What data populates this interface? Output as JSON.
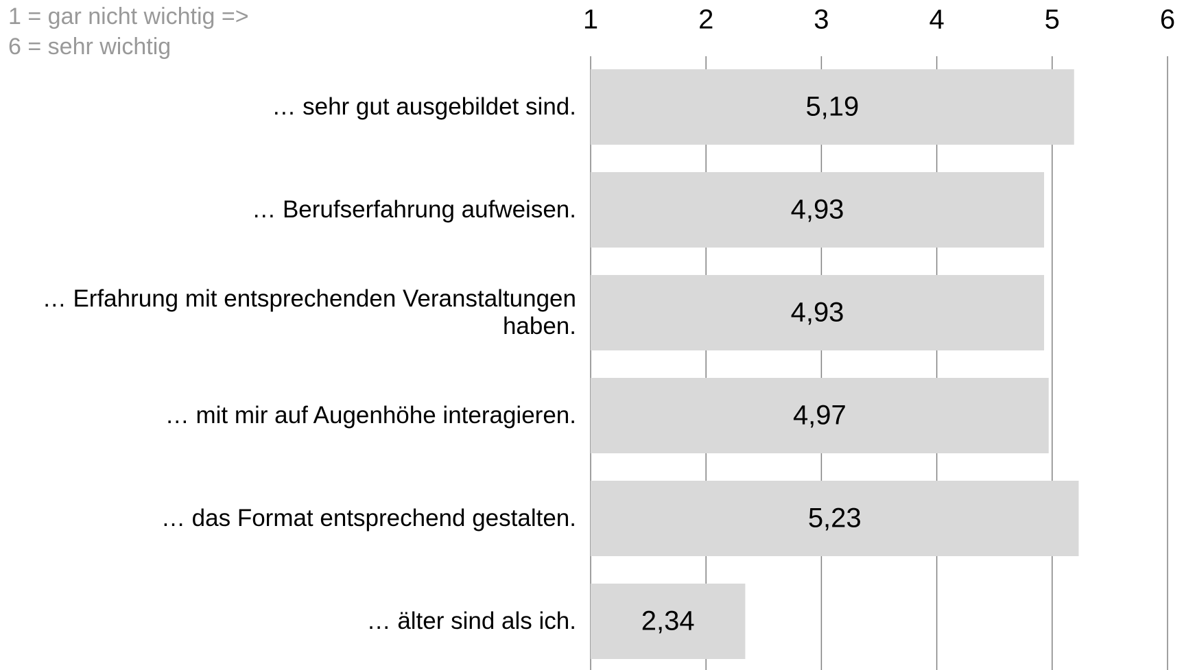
{
  "chart_data": {
    "type": "bar",
    "orientation": "horizontal",
    "annotation": [
      "1 = gar nicht wichtig =>",
      "6 = sehr wichtig"
    ],
    "categories": [
      "… sehr gut ausgebildet sind.",
      "… Berufserfahrung aufweisen.",
      "… Erfahrung mit entsprechenden Veranstaltungen haben.",
      "… mit mir auf Augenhöhe interagieren.",
      "… das Format entsprechend gestalten.",
      "… älter sind als ich."
    ],
    "values": [
      5.19,
      4.93,
      4.93,
      4.97,
      5.23,
      2.34
    ],
    "value_labels": [
      "5,19",
      "4,93",
      "4,93",
      "4,97",
      "5,23",
      "2,34"
    ],
    "color": "#d9d9d9",
    "xlim": [
      1,
      6
    ],
    "xticks": [
      1,
      2,
      3,
      4,
      5,
      6
    ],
    "grid": true
  }
}
